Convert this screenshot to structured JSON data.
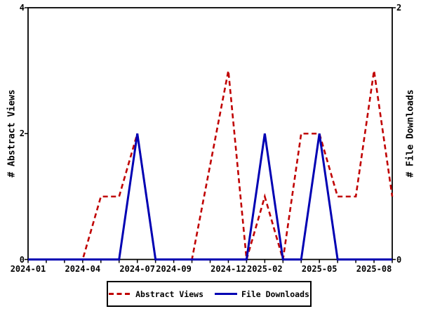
{
  "chart_data": {
    "type": "line",
    "title": "",
    "x": [
      "2024-01",
      "2024-02",
      "2024-03",
      "2024-04",
      "2024-05",
      "2024-06",
      "2024-07",
      "2024-08",
      "2024-09",
      "2024-10",
      "2024-11",
      "2024-12",
      "2025-01",
      "2025-02",
      "2025-03",
      "2025-04",
      "2025-05",
      "2025-06",
      "2025-07",
      "2025-08",
      "2025-09"
    ],
    "series": [
      {
        "name": "Abstract Views",
        "axis": "left",
        "style": "dashed",
        "color": "#c00000",
        "values": [
          0,
          0,
          0,
          0,
          1,
          1,
          2,
          0,
          0,
          0,
          null,
          3,
          0,
          1,
          0,
          2,
          2,
          1,
          1,
          3,
          1
        ]
      },
      {
        "name": "File Downloads",
        "axis": "right",
        "style": "solid",
        "color": "#0000b3",
        "values": [
          0,
          0,
          0,
          0,
          0,
          0,
          1,
          0,
          0,
          0,
          0,
          0,
          0,
          1,
          0,
          0,
          1,
          0,
          0,
          0,
          0
        ]
      }
    ],
    "ylabel_left": "# Abstract Views",
    "ylabel_right": "# File Downloads",
    "left_axis": {
      "min": 0,
      "max": 4,
      "ticks": [
        0,
        2,
        4
      ],
      "tick_labels": [
        "0",
        "2",
        "4"
      ]
    },
    "right_axis": {
      "min": 0,
      "max": 2,
      "ticks": [
        0,
        2
      ],
      "tick_labels": [
        "0",
        "2"
      ]
    },
    "x_ticks": [
      {
        "label": "2024-01",
        "month_index": 0
      },
      {
        "label": "2024-04",
        "month_index": 3
      },
      {
        "label": "2024-07",
        "month_index": 6
      },
      {
        "label": "2024-09",
        "month_index": 8
      },
      {
        "label": "2024-12",
        "month_index": 11
      },
      {
        "label": "2025-02",
        "month_index": 13
      },
      {
        "label": "2025-05",
        "month_index": 16
      },
      {
        "label": "2025-08",
        "month_index": 19
      }
    ],
    "grid": false,
    "legend_position": "bottom-center",
    "axis_color": "#000000",
    "background": "#ffffff"
  }
}
